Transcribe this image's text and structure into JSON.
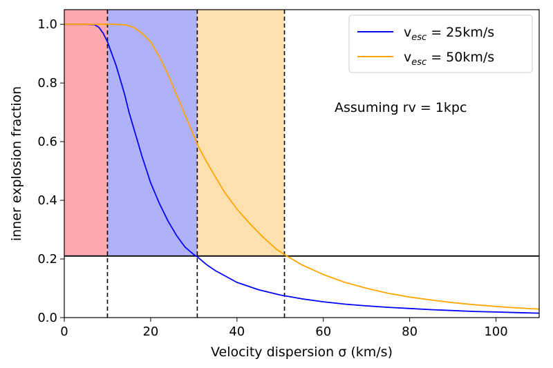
{
  "chart_data": {
    "type": "line",
    "xlabel": "Velocity dispersion σ (km/s)",
    "ylabel": "inner explosion fraction",
    "xlim": [
      0,
      110
    ],
    "ylim": [
      0,
      1.05
    ],
    "x_ticks": [
      0,
      20,
      40,
      60,
      80,
      100
    ],
    "y_ticks": [
      0.0,
      0.2,
      0.4,
      0.6,
      0.8,
      1.0
    ],
    "x_tick_labels": [
      "0",
      "20",
      "40",
      "60",
      "80",
      "100"
    ],
    "y_tick_labels": [
      "0.0",
      "0.2",
      "0.4",
      "0.6",
      "0.8",
      "1.0"
    ],
    "grid": false,
    "legend_position": "top-right",
    "annotation": "Assuming rv = 1kpc",
    "shaded_regions": [
      {
        "x": [
          0,
          10
        ],
        "y": [
          0.21,
          1.05
        ],
        "color": "#fca8ad"
      },
      {
        "x": [
          10,
          30.8
        ],
        "y": [
          0.21,
          1.05
        ],
        "color": "#b0b1f7"
      },
      {
        "x": [
          30.8,
          51
        ],
        "y": [
          0.21,
          1.05
        ],
        "color": "#fde0ad"
      }
    ],
    "hline": {
      "y": 0.21,
      "color": "#000000"
    },
    "vlines": [
      {
        "x": 10,
        "style": "dashed"
      },
      {
        "x": 30.8,
        "style": "dashed"
      },
      {
        "x": 51,
        "style": "dashed"
      }
    ],
    "series": [
      {
        "legend_main": "v",
        "legend_sub": "esc",
        "legend_tail": " = 25km/s",
        "color": "#0000ff",
        "x": [
          0,
          5,
          7,
          8,
          9,
          10,
          11,
          12,
          13,
          14,
          15,
          16,
          17,
          18,
          20,
          22,
          24,
          26,
          28,
          30,
          31,
          33,
          35,
          40,
          45,
          50,
          55,
          60,
          65,
          70,
          75,
          80,
          85,
          90,
          95,
          100,
          105,
          110
        ],
        "y": [
          1.0,
          1.0,
          0.999,
          0.99,
          0.97,
          0.94,
          0.9,
          0.86,
          0.81,
          0.76,
          0.7,
          0.65,
          0.6,
          0.55,
          0.46,
          0.39,
          0.33,
          0.28,
          0.24,
          0.215,
          0.205,
          0.18,
          0.16,
          0.12,
          0.095,
          0.077,
          0.064,
          0.054,
          0.046,
          0.04,
          0.035,
          0.031,
          0.027,
          0.024,
          0.021,
          0.019,
          0.017,
          0.015
        ]
      },
      {
        "legend_main": "v",
        "legend_sub": "esc",
        "legend_tail": " = 50km/s",
        "color": "#ffa500",
        "x": [
          0,
          10,
          12,
          14,
          15,
          16,
          18,
          20,
          22,
          24,
          26,
          28,
          30,
          31,
          33,
          35,
          37,
          40,
          43,
          46,
          49,
          51,
          55,
          60,
          65,
          70,
          75,
          80,
          85,
          90,
          95,
          100,
          105,
          110
        ],
        "y": [
          1.0,
          1.0,
          1.0,
          0.998,
          0.995,
          0.99,
          0.97,
          0.94,
          0.89,
          0.83,
          0.76,
          0.69,
          0.62,
          0.585,
          0.53,
          0.48,
          0.43,
          0.37,
          0.32,
          0.275,
          0.235,
          0.215,
          0.18,
          0.147,
          0.12,
          0.1,
          0.083,
          0.07,
          0.06,
          0.051,
          0.044,
          0.038,
          0.033,
          0.029
        ]
      }
    ]
  }
}
